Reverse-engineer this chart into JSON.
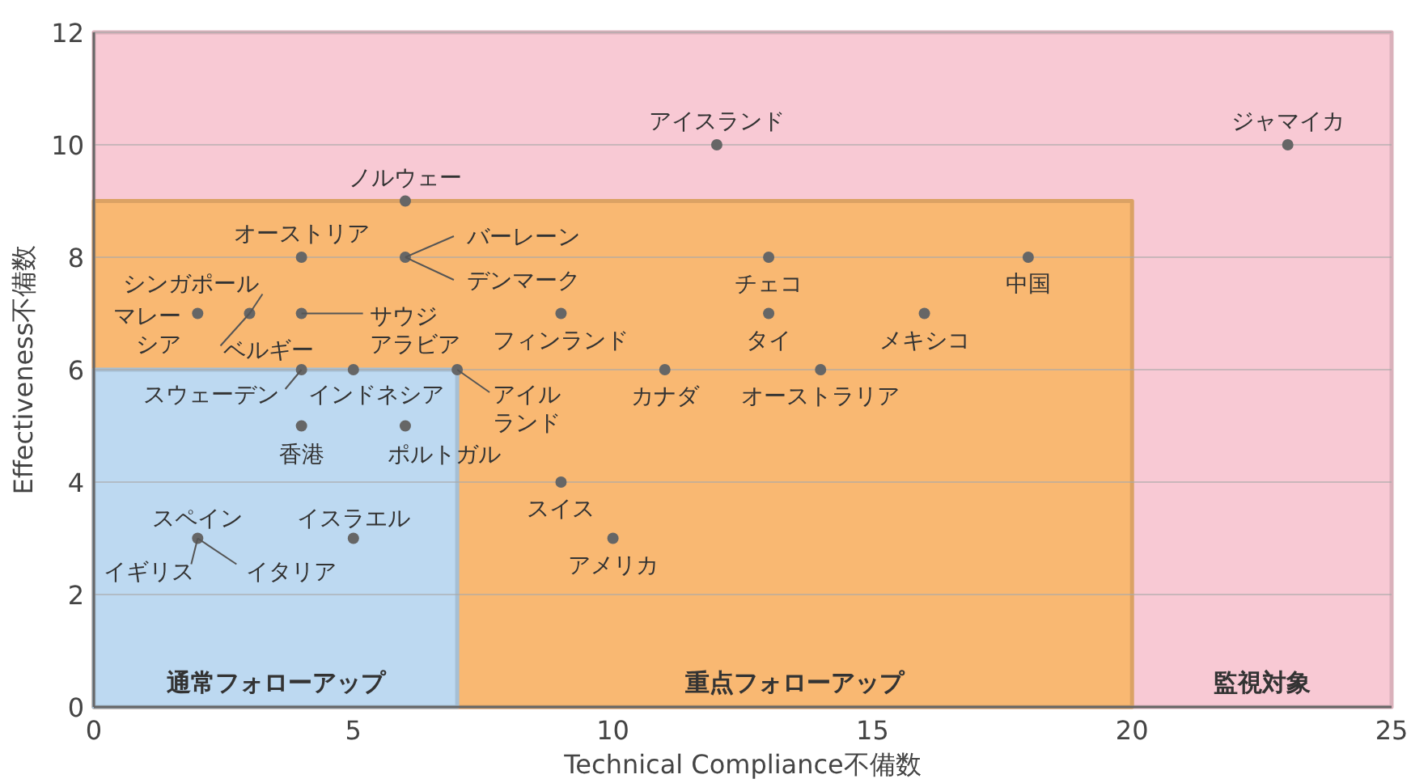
{
  "chart_data": {
    "type": "scatter",
    "xlabel": "Technical Compliance不備数",
    "ylabel": "Effectiveness不備数",
    "xlim": [
      0,
      25
    ],
    "xticks": [
      0,
      5,
      10,
      15,
      20,
      25
    ],
    "ylim": [
      0,
      12
    ],
    "yticks": [
      0,
      2,
      4,
      6,
      8,
      10,
      12
    ],
    "grid": "y",
    "series": [
      {
        "type": "area",
        "name": "監視対象",
        "color": "#f8c9d4",
        "x": [
          0,
          25
        ],
        "values": [
          12,
          12
        ]
      },
      {
        "type": "area",
        "name": "重点フォローアップ",
        "color": "#f9b872",
        "x": [
          0,
          20
        ],
        "values": [
          9,
          9
        ]
      },
      {
        "type": "area",
        "name": "通常フォローアップ",
        "color": "#bdd9f1",
        "x": [
          0,
          7
        ],
        "values": [
          6,
          6
        ]
      },
      {
        "marker": "circle",
        "color": "#666666",
        "x": [
          12,
          23,
          6,
          4,
          6,
          13,
          18,
          3,
          2,
          4,
          9,
          13,
          16,
          4,
          5,
          7,
          11,
          14,
          4,
          6,
          9,
          2,
          5,
          10
        ],
        "values": [
          10,
          10,
          9,
          8,
          8,
          8,
          8,
          7,
          7,
          7,
          7,
          7,
          7,
          6,
          6,
          6,
          6,
          6,
          5,
          5,
          4,
          3,
          3,
          3
        ]
      }
    ],
    "annotations": [
      {
        "text": "アイスランド",
        "x": 12,
        "y": 10
      },
      {
        "text": "ジャマイカ",
        "x": 23,
        "y": 10
      },
      {
        "text": "ノルウェー",
        "x": 6,
        "y": 9
      },
      {
        "text": "オーストリア",
        "x": 4,
        "y": 8
      },
      {
        "text": "バーレーン",
        "x": 6,
        "y": 8
      },
      {
        "text": "デンマーク",
        "x": 6,
        "y": 8
      },
      {
        "text": "チェコ",
        "x": 13,
        "y": 8
      },
      {
        "text": "中国",
        "x": 18,
        "y": 8
      },
      {
        "text": "シンガポール",
        "x": 3,
        "y": 7
      },
      {
        "text": "マレーシア",
        "x": 2,
        "y": 7
      },
      {
        "text": "ベルギー",
        "x": 3,
        "y": 7
      },
      {
        "text": "サウジアラビア",
        "x": 4,
        "y": 7
      },
      {
        "text": "フィンランド",
        "x": 9,
        "y": 7
      },
      {
        "text": "タイ",
        "x": 13,
        "y": 7
      },
      {
        "text": "メキシコ",
        "x": 16,
        "y": 7
      },
      {
        "text": "スウェーデン",
        "x": 4,
        "y": 6
      },
      {
        "text": "インドネシア",
        "x": 5,
        "y": 6
      },
      {
        "text": "アイルランド",
        "x": 7,
        "y": 6
      },
      {
        "text": "カナダ",
        "x": 11,
        "y": 6
      },
      {
        "text": "オーストラリア",
        "x": 14,
        "y": 6
      },
      {
        "text": "香港",
        "x": 4,
        "y": 5
      },
      {
        "text": "ポルトガル",
        "x": 6,
        "y": 5
      },
      {
        "text": "スイス",
        "x": 9,
        "y": 4
      },
      {
        "text": "スペイン",
        "x": 2,
        "y": 3
      },
      {
        "text": "イギリス",
        "x": 2,
        "y": 3
      },
      {
        "text": "イタリア",
        "x": 2,
        "y": 3
      },
      {
        "text": "イスラエル",
        "x": 5,
        "y": 3
      },
      {
        "text": "アメリカ",
        "x": 10,
        "y": 3
      }
    ]
  }
}
